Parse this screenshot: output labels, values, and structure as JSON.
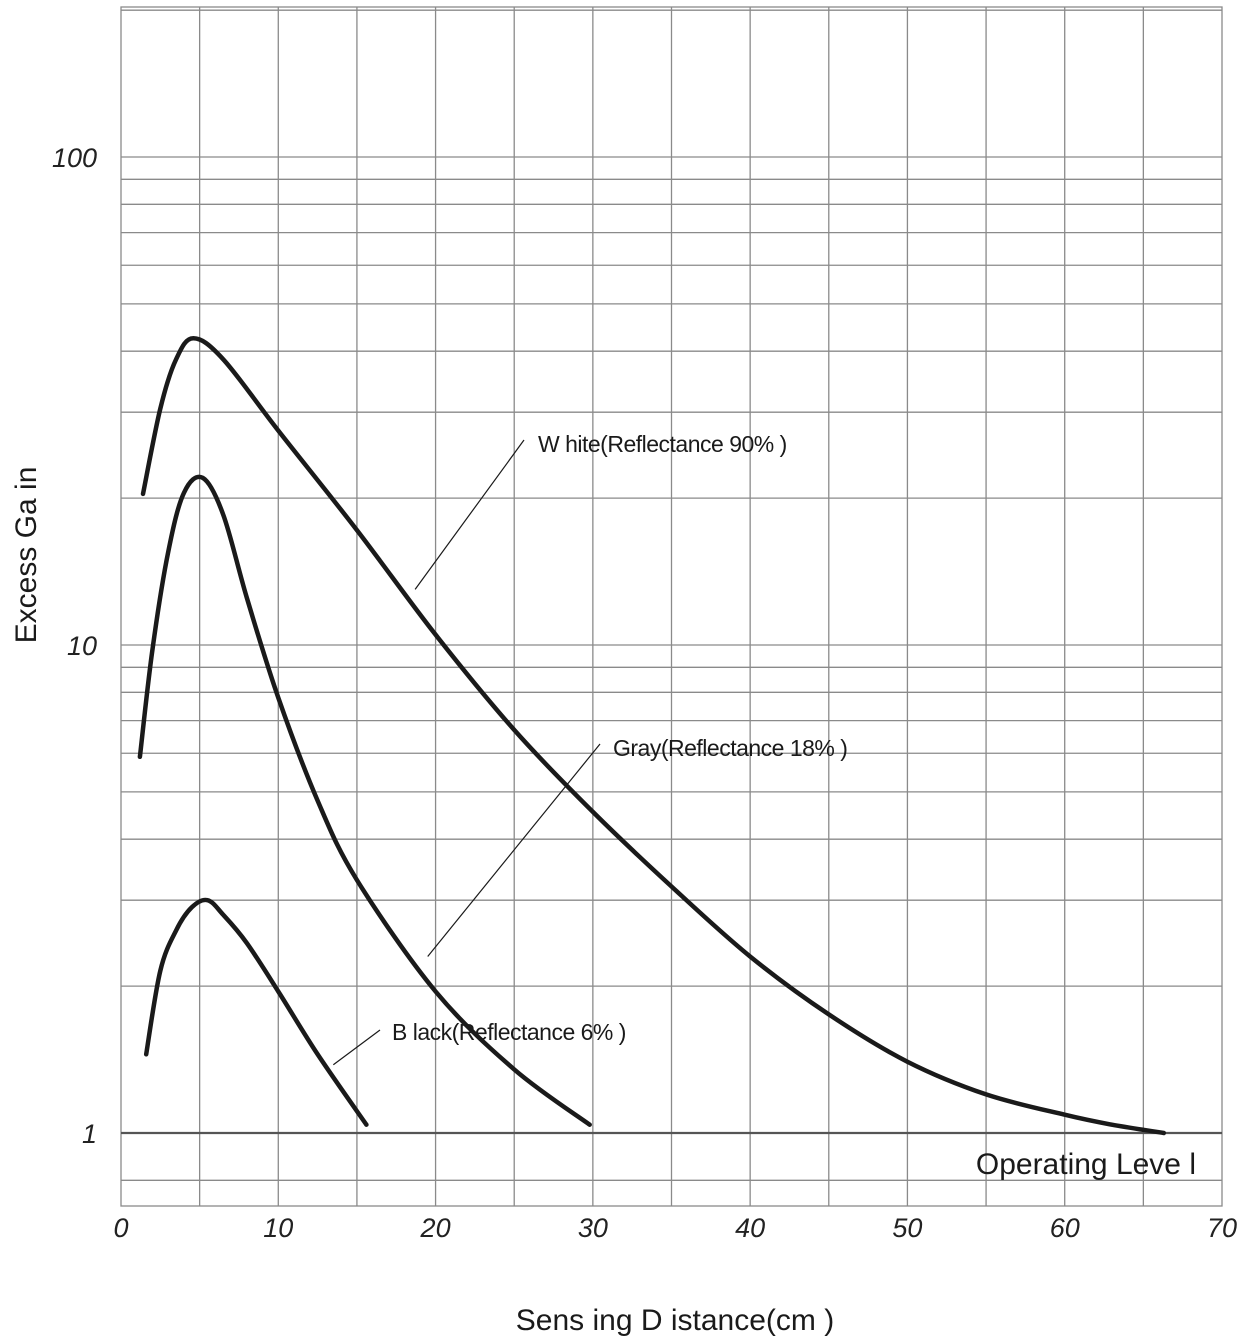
{
  "chart_data": {
    "type": "line",
    "xlabel": "Sens ing D istance(cm )",
    "ylabel": "Excess Ga in",
    "xlim": [
      0,
      70
    ],
    "ylim": [
      0.7,
      200
    ],
    "yscale": "log",
    "grid": true,
    "x_ticks": [
      0,
      10,
      20,
      30,
      40,
      50,
      60,
      70
    ],
    "x_tick_labels": [
      "0",
      "10",
      "20",
      "30",
      "40",
      "50",
      "60",
      "70"
    ],
    "y_ticks": [
      1,
      10,
      100
    ],
    "y_tick_labels": [
      "1",
      "10",
      "100"
    ],
    "reference_line": {
      "y": 1,
      "label": "Operating Leve l"
    },
    "series": [
      {
        "name": "W hite(Reflectance 90% )",
        "x": [
          1.4,
          2.5,
          3.5,
          4.6,
          6.5,
          10,
          15,
          20,
          25,
          30,
          35,
          40,
          45,
          50,
          55,
          60,
          63,
          66.3
        ],
        "y": [
          20.4,
          30.5,
          38.5,
          42.5,
          38.5,
          27.5,
          17.2,
          10.5,
          6.7,
          4.55,
          3.2,
          2.3,
          1.75,
          1.4,
          1.2,
          1.09,
          1.04,
          1.0
        ],
        "label_anchor": [
          18.7,
          13.0
        ]
      },
      {
        "name": "Gray(Reflectance 18% )",
        "x": [
          1.2,
          2.0,
          3.0,
          4.0,
          5.2,
          6.5,
          8,
          10,
          12.5,
          15,
          20,
          25,
          29.8
        ],
        "y": [
          5.9,
          9.8,
          15.5,
          20.5,
          22.0,
          18.5,
          12.5,
          7.8,
          4.8,
          3.3,
          1.95,
          1.35,
          1.04
        ],
        "label_anchor": [
          19.5,
          2.3
        ]
      },
      {
        "name": "B lack(Reflectance 6% )",
        "x": [
          1.6,
          2.5,
          3.5,
          4.5,
          5.5,
          6.5,
          8,
          10,
          12.5,
          15.6
        ],
        "y": [
          1.45,
          2.15,
          2.6,
          2.9,
          3.0,
          2.8,
          2.45,
          1.95,
          1.45,
          1.04
        ],
        "label_anchor": [
          13.5,
          1.38
        ]
      }
    ]
  }
}
